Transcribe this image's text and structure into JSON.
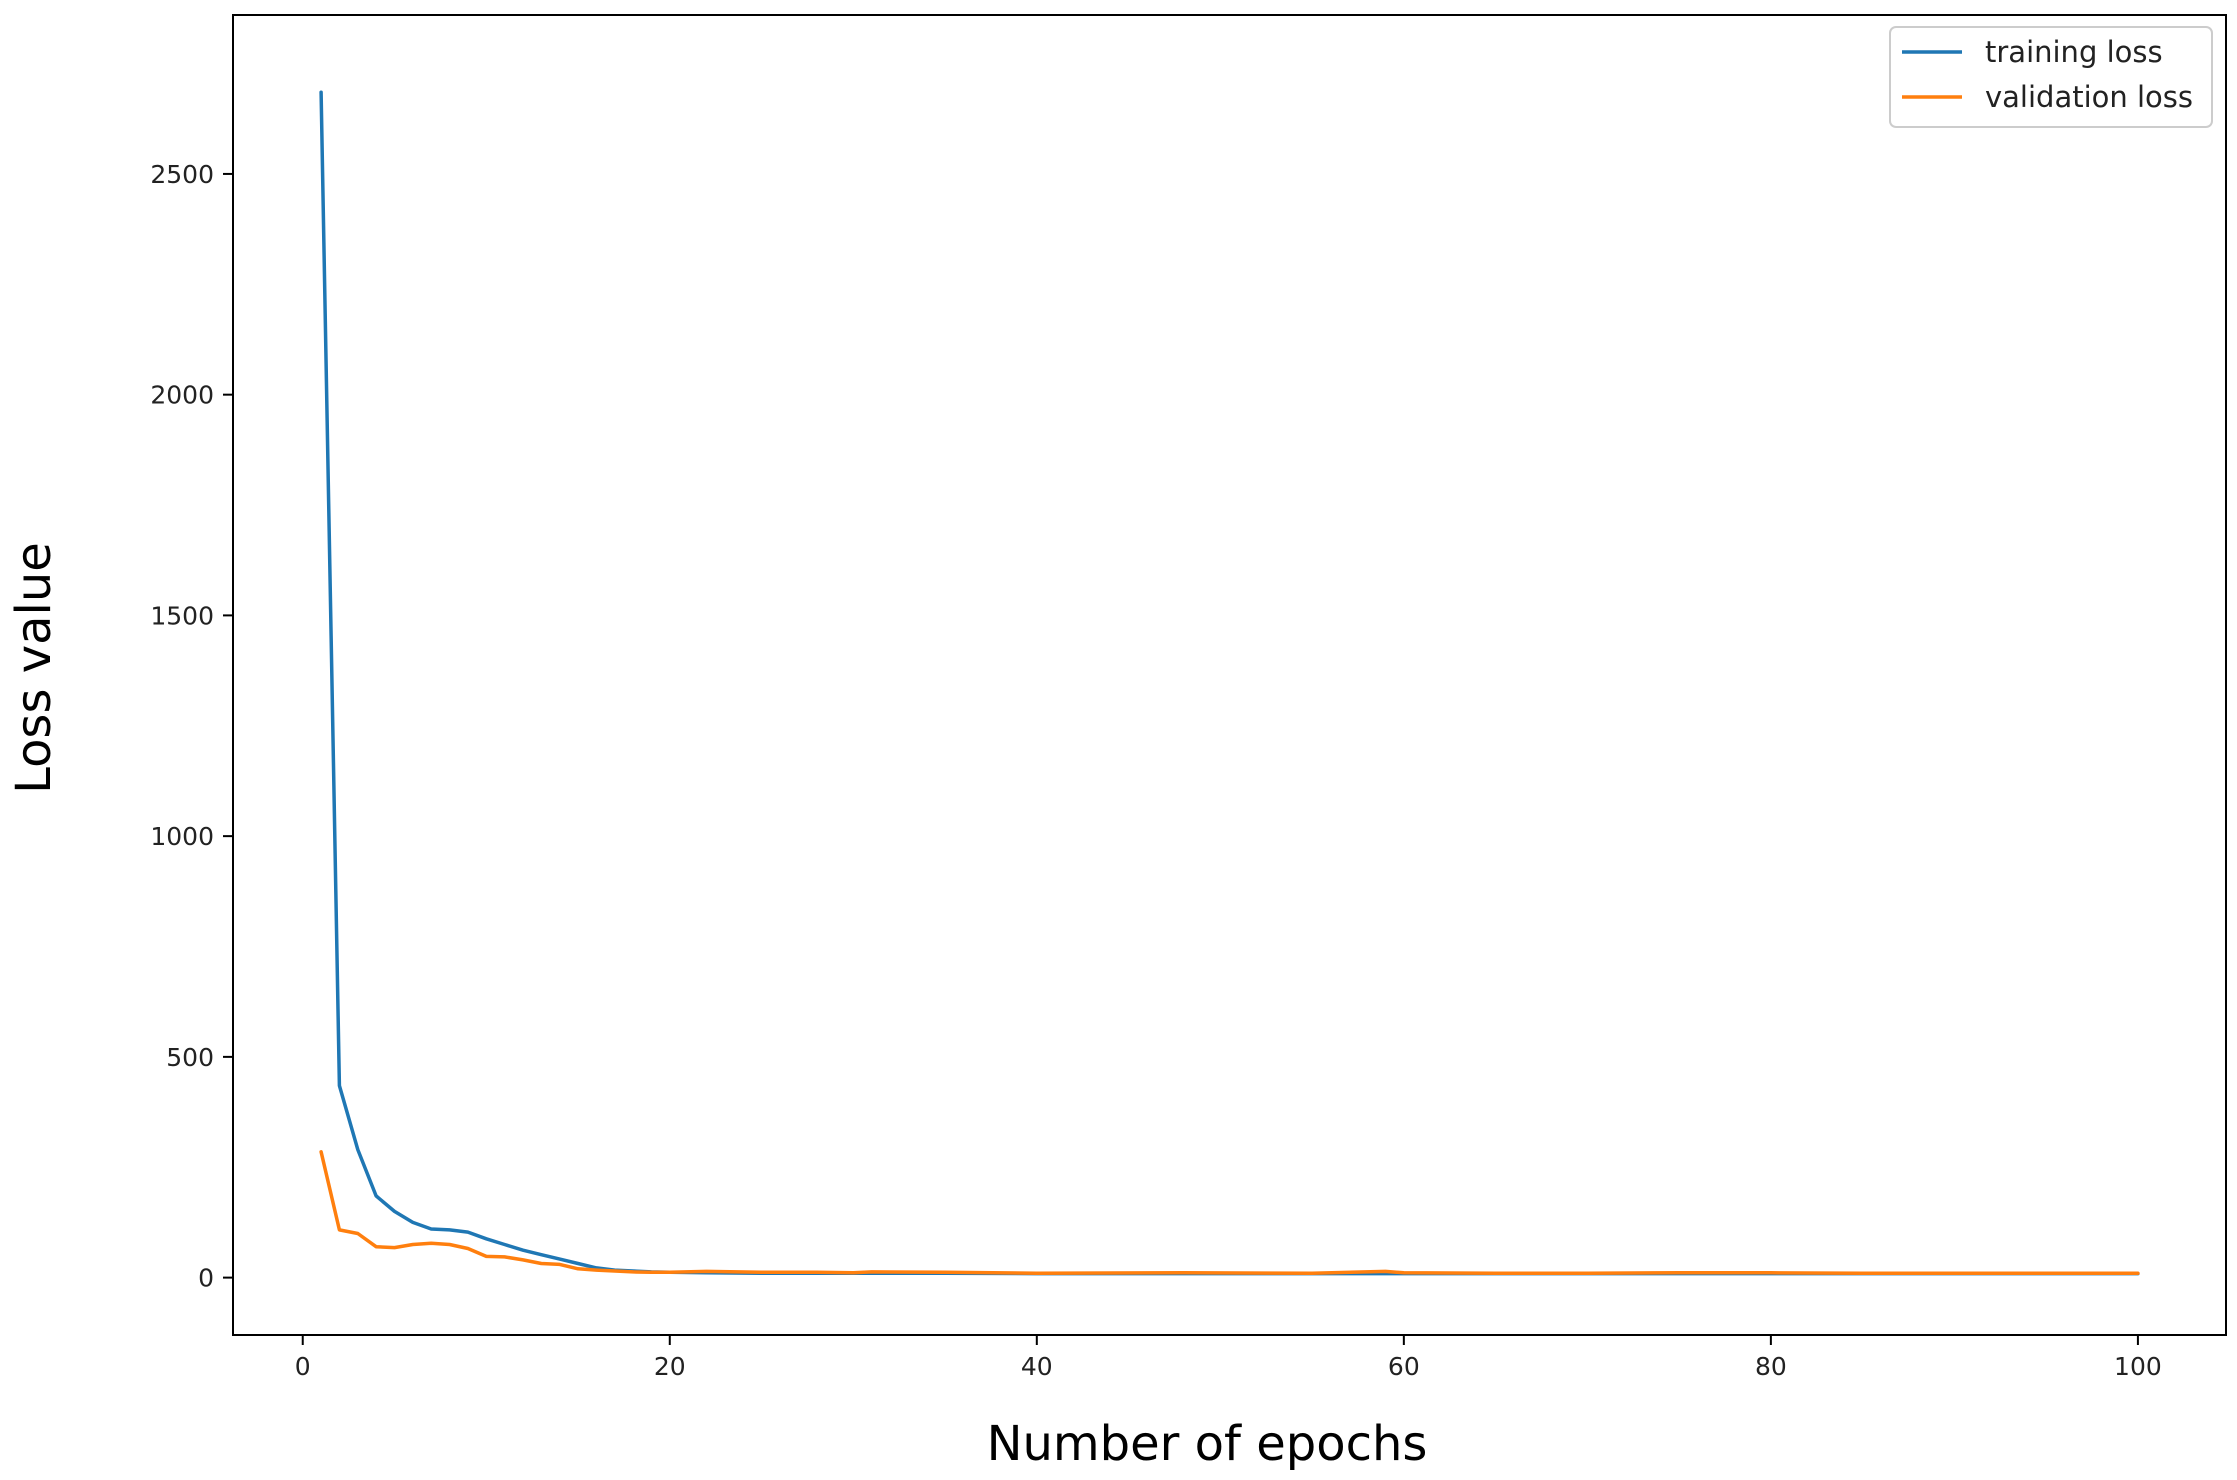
{
  "chart_data": {
    "type": "line",
    "title": "",
    "xlabel": "Number of epochs",
    "ylabel": "Loss value",
    "xlim": [
      -3.8,
      104.8
    ],
    "ylim": [
      -130,
      2860
    ],
    "xticks": [
      0,
      20,
      40,
      60,
      80,
      100
    ],
    "yticks": [
      0,
      500,
      1000,
      1500,
      2000,
      2500
    ],
    "grid": false,
    "legend_position": "top-right",
    "series": [
      {
        "name": "training loss",
        "color": "#1f77b4",
        "x": [
          1,
          2,
          3,
          4,
          5,
          6,
          7,
          8,
          9,
          10,
          11,
          12,
          13,
          14,
          15,
          16,
          17,
          18,
          19,
          20,
          22,
          25,
          28,
          30,
          35,
          40,
          45,
          50,
          55,
          60,
          65,
          70,
          75,
          80,
          85,
          90,
          95,
          100
        ],
        "y": [
          2685,
          435,
          290,
          185,
          150,
          125,
          110,
          108,
          103,
          88,
          75,
          62,
          52,
          42,
          32,
          22,
          17,
          15,
          13,
          12,
          11,
          10,
          10,
          10,
          10,
          9,
          9,
          9,
          9,
          9,
          9,
          9,
          9,
          9,
          9,
          9,
          9,
          9
        ]
      },
      {
        "name": "validation loss",
        "color": "#ff7f0e",
        "x": [
          1,
          2,
          3,
          4,
          5,
          6,
          7,
          8,
          9,
          10,
          11,
          12,
          13,
          14,
          15,
          16,
          17,
          18,
          19,
          20,
          22,
          25,
          28,
          30,
          31,
          35,
          40,
          48,
          55,
          59,
          60,
          65,
          70,
          75,
          80,
          85,
          90,
          95,
          100
        ],
        "y": [
          285,
          108,
          100,
          70,
          68,
          75,
          78,
          75,
          66,
          48,
          47,
          40,
          32,
          30,
          20,
          17,
          15,
          13,
          12,
          12,
          14,
          12,
          12,
          11,
          13,
          12,
          10,
          11,
          10,
          14,
          11,
          10,
          10,
          11,
          11,
          10,
          10,
          10,
          10
        ]
      }
    ]
  }
}
